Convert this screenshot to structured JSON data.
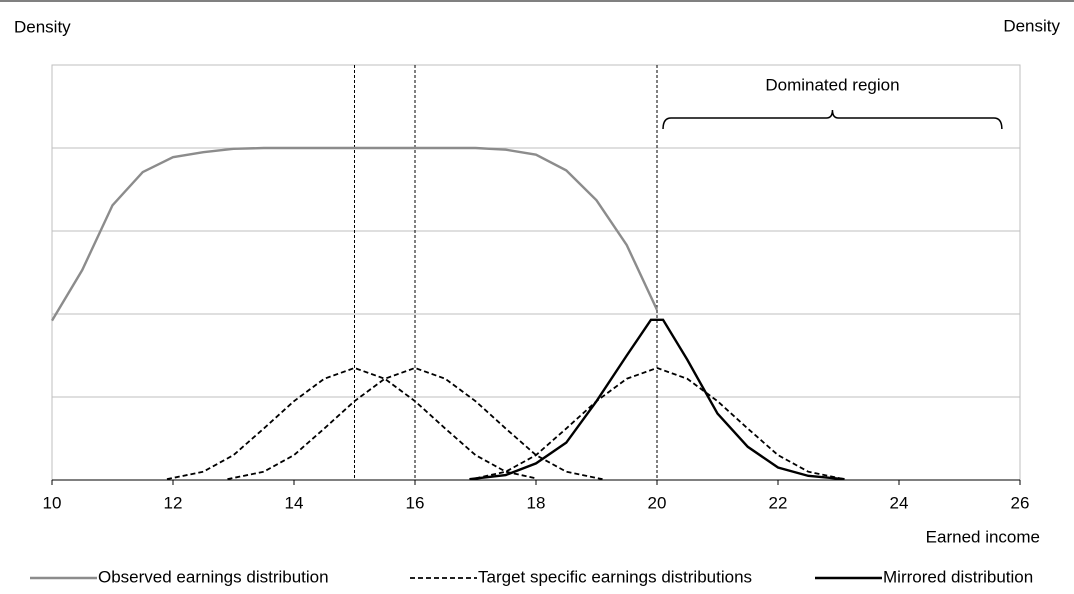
{
  "chart_data": {
    "type": "line",
    "y_label_left": "Density",
    "y_label_right": "Density",
    "x_label": "Earned income",
    "xlim": [
      10,
      26
    ],
    "xticks": [
      10,
      12,
      14,
      16,
      18,
      20,
      22,
      24,
      26
    ],
    "ylim": [
      0,
      5
    ],
    "grid_y": [
      1,
      2,
      3,
      4
    ],
    "reference_lines": [
      15,
      16,
      20
    ],
    "annotation": {
      "text": "Dominated region",
      "from": 20.1,
      "to": 25.7
    },
    "series": [
      {
        "name": "Observed earnings distribution",
        "color": "#8c8c8c",
        "dash": false,
        "x": [
          10,
          10.5,
          11,
          11.5,
          12,
          12.5,
          13,
          13.5,
          14,
          15,
          16,
          17,
          17.5,
          18,
          18.5,
          19,
          19.5,
          20
        ],
        "values": [
          1.92,
          2.53,
          3.31,
          3.71,
          3.89,
          3.95,
          3.99,
          4,
          4,
          4,
          4,
          4,
          3.98,
          3.92,
          3.73,
          3.37,
          2.83,
          2.05
        ]
      },
      {
        "name": "Target specific earnings distributions",
        "color": "#000000",
        "dash": true,
        "x": [
          11.9,
          12.5,
          13,
          13.5,
          14,
          14.5,
          15,
          15.5,
          16,
          16.5,
          17,
          17.5,
          18
        ],
        "values": [
          0.01,
          0.1,
          0.3,
          0.62,
          0.95,
          1.22,
          1.35,
          1.22,
          0.95,
          0.62,
          0.3,
          0.1,
          0.02
        ]
      },
      {
        "name": null,
        "color": "#000000",
        "dash": true,
        "x": [
          12.9,
          13.5,
          14,
          14.5,
          15,
          15.5,
          16,
          16.5,
          17,
          17.5,
          18,
          18.5,
          19.1
        ],
        "values": [
          0.01,
          0.1,
          0.3,
          0.62,
          0.95,
          1.22,
          1.35,
          1.22,
          0.95,
          0.62,
          0.3,
          0.1,
          0.01
        ]
      },
      {
        "name": null,
        "color": "#000000",
        "dash": true,
        "x": [
          17,
          17.5,
          18,
          18.5,
          19,
          19.5,
          20,
          20.5,
          21,
          21.5,
          22,
          22.5,
          23.1
        ],
        "values": [
          0.02,
          0.1,
          0.3,
          0.62,
          0.95,
          1.22,
          1.35,
          1.22,
          0.95,
          0.62,
          0.3,
          0.1,
          0.01
        ]
      },
      {
        "name": "Mirrored distribution",
        "color": "#000000",
        "dash": false,
        "x": [
          16.9,
          17.5,
          18,
          18.5,
          19,
          19.5,
          19.9,
          20.1,
          20.5,
          21,
          21.5,
          22,
          22.5,
          23.1
        ],
        "values": [
          0.01,
          0.06,
          0.2,
          0.45,
          0.95,
          1.5,
          1.93,
          1.93,
          1.45,
          0.8,
          0.4,
          0.15,
          0.05,
          0.01
        ]
      }
    ]
  }
}
